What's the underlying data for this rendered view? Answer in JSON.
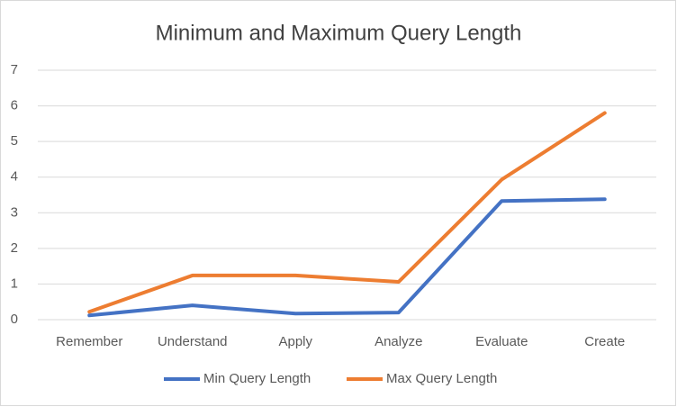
{
  "chart_data": {
    "type": "line",
    "title": "Minimum and Maximum Query Length",
    "categories": [
      "Remember",
      "Understand",
      "Apply",
      "Analyze",
      "Evaluate",
      "Create"
    ],
    "series": [
      {
        "name": "Min Query Length",
        "color": "#4472c4",
        "values": [
          0.12,
          0.4,
          0.17,
          0.2,
          3.33,
          3.38
        ]
      },
      {
        "name": "Max Query Length",
        "color": "#ed7d31",
        "values": [
          0.22,
          1.24,
          1.24,
          1.06,
          3.93,
          5.8
        ]
      }
    ],
    "ylim": [
      0,
      7
    ],
    "yticks": [
      0,
      1,
      2,
      3,
      4,
      5,
      6,
      7
    ],
    "grid": true,
    "legend": "bottom"
  }
}
